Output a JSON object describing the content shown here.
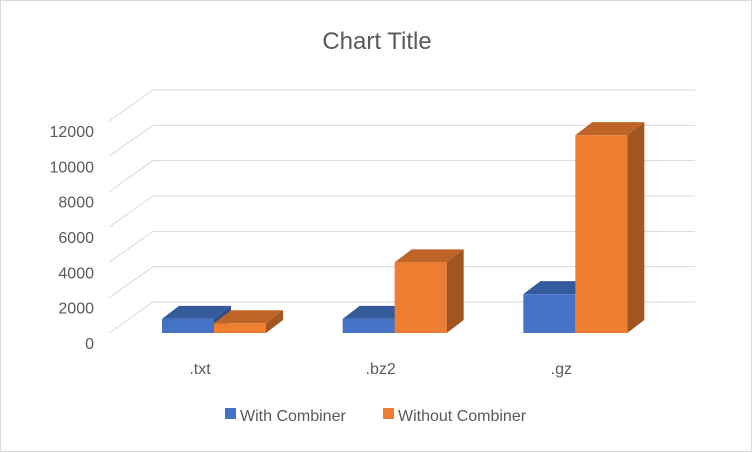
{
  "chart_data": {
    "type": "bar",
    "title": "Chart Title",
    "xlabel": "",
    "ylabel": "",
    "categories": [
      ".txt",
      ".bz2",
      ".gz"
    ],
    "series": [
      {
        "name": "With Combiner",
        "values": [
          800,
          800,
          2200
        ],
        "color": "#4472c4"
      },
      {
        "name": "Without Combiner",
        "values": [
          550,
          4000,
          11200
        ],
        "color": "#ed7d31"
      }
    ],
    "yticks": [
      0,
      2000,
      4000,
      6000,
      8000,
      10000,
      12000
    ],
    "ylim": [
      0,
      12000
    ],
    "grid": true,
    "legend": "bottom",
    "style": "3d-clustered-column"
  }
}
